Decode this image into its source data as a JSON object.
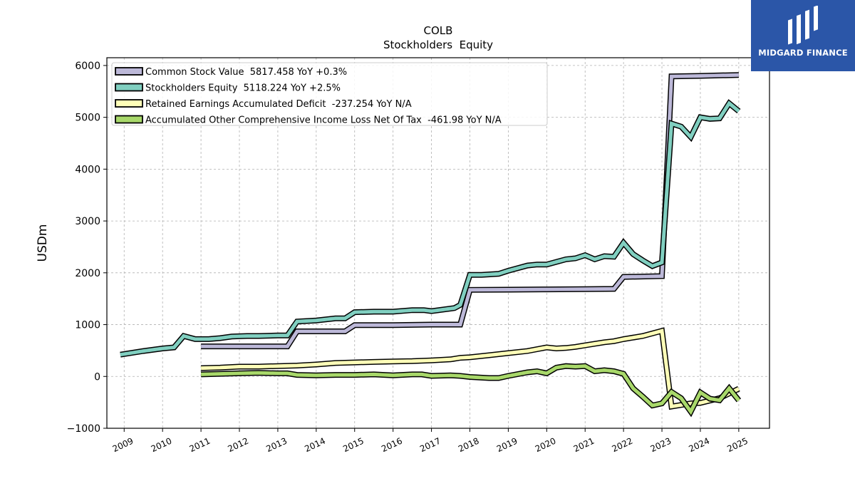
{
  "logo": {
    "text": "MIDGARD FINANCE",
    "icon": "midgard-mark-icon",
    "background": "#2b56a8"
  },
  "chart_data": {
    "type": "line",
    "title": "COLB",
    "subtitle": "Stockholders  Equity",
    "ylabel": "USDm",
    "xlabel": "",
    "ylim": [
      -1000,
      6150
    ],
    "xlim": [
      2008.55,
      2025.8
    ],
    "yticks": [
      -1000,
      0,
      1000,
      2000,
      3000,
      4000,
      5000,
      6000
    ],
    "ytick_labels": [
      "−1000",
      "0",
      "1000",
      "2000",
      "3000",
      "4000",
      "5000",
      "6000"
    ],
    "xticks": [
      2009,
      2010,
      2011,
      2012,
      2013,
      2014,
      2015,
      2016,
      2017,
      2018,
      2019,
      2020,
      2021,
      2022,
      2023,
      2024,
      2025
    ],
    "grid": true,
    "legend_position": "top-left",
    "series": [
      {
        "name": "Common Stock Value",
        "legend": "Common Stock Value  5817.458 YoY +0.3%",
        "color": "#bcb8d8",
        "points": [
          [
            2011.0,
            580
          ],
          [
            2012.0,
            580
          ],
          [
            2013.0,
            580
          ],
          [
            2013.25,
            580
          ],
          [
            2013.5,
            870
          ],
          [
            2014.0,
            870
          ],
          [
            2014.75,
            870
          ],
          [
            2015.0,
            990
          ],
          [
            2016.0,
            990
          ],
          [
            2017.0,
            1000
          ],
          [
            2017.75,
            1000
          ],
          [
            2018.0,
            1670
          ],
          [
            2019.0,
            1675
          ],
          [
            2020.0,
            1680
          ],
          [
            2021.0,
            1685
          ],
          [
            2021.75,
            1690
          ],
          [
            2022.0,
            1920
          ],
          [
            2023.0,
            1935
          ],
          [
            2023.25,
            5790
          ],
          [
            2024.0,
            5800
          ],
          [
            2025.0,
            5817.458
          ]
        ]
      },
      {
        "name": "Stockholders Equity",
        "legend": "Stockholders Equity  5118.224 YoY +2.5%",
        "color": "#80cfc0",
        "points": [
          [
            2008.9,
            420
          ],
          [
            2009.5,
            490
          ],
          [
            2010.0,
            540
          ],
          [
            2010.3,
            560
          ],
          [
            2010.55,
            780
          ],
          [
            2010.85,
            720
          ],
          [
            2011.2,
            720
          ],
          [
            2011.5,
            740
          ],
          [
            2011.8,
            770
          ],
          [
            2012.2,
            780
          ],
          [
            2012.5,
            780
          ],
          [
            2013.0,
            790
          ],
          [
            2013.25,
            790
          ],
          [
            2013.5,
            1060
          ],
          [
            2014.0,
            1080
          ],
          [
            2014.5,
            1120
          ],
          [
            2014.75,
            1120
          ],
          [
            2015.0,
            1240
          ],
          [
            2015.5,
            1250
          ],
          [
            2016.0,
            1250
          ],
          [
            2016.5,
            1280
          ],
          [
            2016.8,
            1280
          ],
          [
            2017.0,
            1260
          ],
          [
            2017.6,
            1320
          ],
          [
            2017.75,
            1380
          ],
          [
            2018.0,
            1960
          ],
          [
            2018.3,
            1960
          ],
          [
            2018.75,
            1980
          ],
          [
            2019.0,
            2040
          ],
          [
            2019.5,
            2140
          ],
          [
            2019.75,
            2160
          ],
          [
            2020.0,
            2160
          ],
          [
            2020.5,
            2260
          ],
          [
            2020.75,
            2280
          ],
          [
            2021.0,
            2340
          ],
          [
            2021.25,
            2260
          ],
          [
            2021.5,
            2320
          ],
          [
            2021.75,
            2310
          ],
          [
            2022.0,
            2580
          ],
          [
            2022.25,
            2360
          ],
          [
            2022.5,
            2240
          ],
          [
            2022.75,
            2130
          ],
          [
            2023.0,
            2200
          ],
          [
            2023.25,
            4880
          ],
          [
            2023.5,
            4820
          ],
          [
            2023.75,
            4620
          ],
          [
            2024.0,
            5000
          ],
          [
            2024.25,
            4970
          ],
          [
            2024.5,
            4980
          ],
          [
            2024.75,
            5270
          ],
          [
            2025.0,
            5118.224
          ]
        ]
      },
      {
        "name": "Retained Earnings Accumulated Deficit",
        "legend": "Retained Earnings Accumulated Deficit  -237.254 YoY N/A",
        "color": "#ffffb8",
        "points": [
          [
            2011.0,
            160
          ],
          [
            2011.5,
            170
          ],
          [
            2012.0,
            190
          ],
          [
            2012.5,
            190
          ],
          [
            2013.0,
            200
          ],
          [
            2013.5,
            210
          ],
          [
            2014.0,
            230
          ],
          [
            2014.5,
            260
          ],
          [
            2015.0,
            270
          ],
          [
            2015.5,
            280
          ],
          [
            2016.0,
            290
          ],
          [
            2016.5,
            295
          ],
          [
            2017.0,
            310
          ],
          [
            2017.5,
            330
          ],
          [
            2017.75,
            360
          ],
          [
            2018.0,
            370
          ],
          [
            2018.5,
            410
          ],
          [
            2019.0,
            450
          ],
          [
            2019.5,
            490
          ],
          [
            2020.0,
            560
          ],
          [
            2020.25,
            540
          ],
          [
            2020.5,
            550
          ],
          [
            2020.75,
            570
          ],
          [
            2021.0,
            600
          ],
          [
            2021.5,
            660
          ],
          [
            2021.75,
            680
          ],
          [
            2022.0,
            720
          ],
          [
            2022.5,
            780
          ],
          [
            2023.0,
            880
          ],
          [
            2023.25,
            -580
          ],
          [
            2023.75,
            -520
          ],
          [
            2024.0,
            -510
          ],
          [
            2024.5,
            -420
          ],
          [
            2025.0,
            -237.254
          ]
        ]
      },
      {
        "name": "Accumulated Other Comprehensive Income Loss Net Of Tax",
        "legend": "Accumulated Other Comprehensive Income Loss Net Of Tax  -461.98 YoY N/A",
        "color": "#a8d86a",
        "points": [
          [
            2011.0,
            40
          ],
          [
            2011.5,
            50
          ],
          [
            2012.0,
            60
          ],
          [
            2012.5,
            70
          ],
          [
            2013.0,
            60
          ],
          [
            2013.25,
            60
          ],
          [
            2013.5,
            30
          ],
          [
            2014.0,
            20
          ],
          [
            2014.5,
            30
          ],
          [
            2015.0,
            30
          ],
          [
            2015.5,
            40
          ],
          [
            2016.0,
            20
          ],
          [
            2016.5,
            40
          ],
          [
            2016.75,
            40
          ],
          [
            2017.0,
            10
          ],
          [
            2017.5,
            20
          ],
          [
            2017.75,
            10
          ],
          [
            2018.0,
            -10
          ],
          [
            2018.5,
            -30
          ],
          [
            2018.75,
            -30
          ],
          [
            2019.0,
            10
          ],
          [
            2019.5,
            80
          ],
          [
            2019.75,
            100
          ],
          [
            2020.0,
            60
          ],
          [
            2020.25,
            170
          ],
          [
            2020.5,
            200
          ],
          [
            2020.75,
            190
          ],
          [
            2021.0,
            200
          ],
          [
            2021.25,
            100
          ],
          [
            2021.5,
            120
          ],
          [
            2021.75,
            100
          ],
          [
            2022.0,
            50
          ],
          [
            2022.25,
            -230
          ],
          [
            2022.5,
            -390
          ],
          [
            2022.75,
            -560
          ],
          [
            2023.0,
            -520
          ],
          [
            2023.25,
            -300
          ],
          [
            2023.5,
            -420
          ],
          [
            2023.75,
            -680
          ],
          [
            2024.0,
            -310
          ],
          [
            2024.25,
            -430
          ],
          [
            2024.5,
            -460
          ],
          [
            2024.75,
            -230
          ],
          [
            2025.0,
            -461.98
          ]
        ]
      }
    ]
  }
}
